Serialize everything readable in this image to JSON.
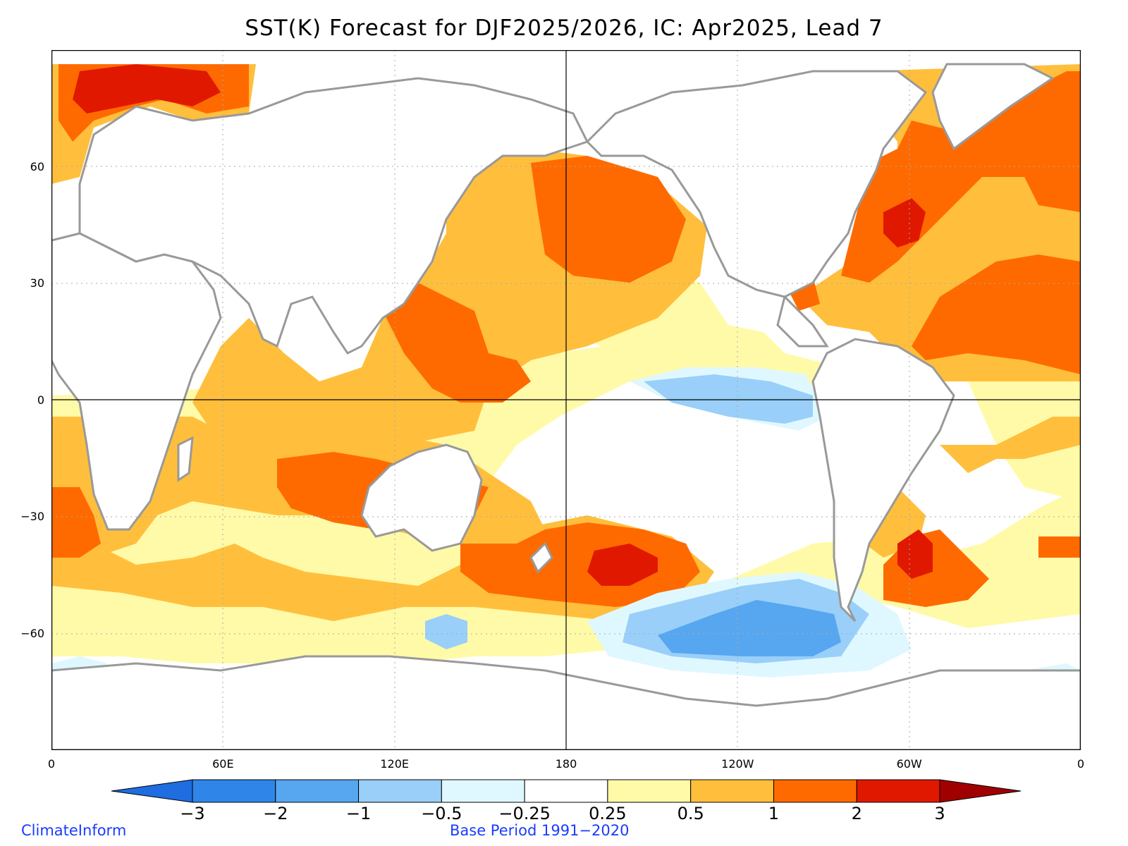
{
  "title": "SST(K) Forecast for DJF2025/2026, IC: Apr2025, Lead 7",
  "map": {
    "projection": "equirectangular",
    "lon_range": [
      0,
      360
    ],
    "lat_range": [
      -90,
      90
    ],
    "lon_ticks": [
      {
        "value": 0,
        "label": "0"
      },
      {
        "value": 60,
        "label": "60E"
      },
      {
        "value": 120,
        "label": "120E"
      },
      {
        "value": 180,
        "label": "180"
      },
      {
        "value": 240,
        "label": "120W"
      },
      {
        "value": 300,
        "label": "60W"
      },
      {
        "value": 360,
        "label": "0"
      }
    ],
    "lat_ticks": [
      {
        "value": 60,
        "label": "60"
      },
      {
        "value": 30,
        "label": "30"
      },
      {
        "value": 0,
        "label": "0"
      },
      {
        "value": -30,
        "label": "-30"
      },
      {
        "value": -60,
        "label": "-60"
      }
    ],
    "grid": "dotted",
    "land_color": "#ffffff",
    "coast_color": "#999999"
  },
  "colorbar": {
    "levels": [
      "−3",
      "−2",
      "−1",
      "−0.5",
      "−0.25",
      "0.25",
      "0.5",
      "1",
      "2",
      "3"
    ],
    "colors": [
      "#1f6de0",
      "#2f86e8",
      "#57a6f0",
      "#99cff9",
      "#dff8ff",
      "#ffffff",
      "#fffaa8",
      "#ffbf3c",
      "#ff6a00",
      "#e01800",
      "#a00000"
    ],
    "extend": "both"
  },
  "credits": {
    "left": "ClimateInform",
    "center": "Base Period 1991−2020"
  }
}
